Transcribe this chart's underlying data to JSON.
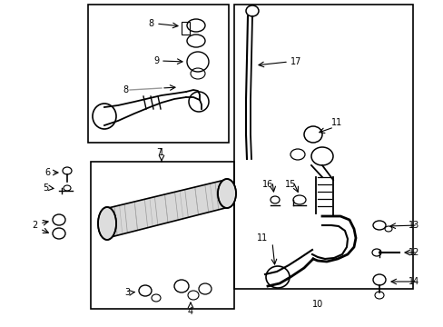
{
  "bg_color": "#ffffff",
  "line_color": "#000000",
  "gray_color": "#999999",
  "fig_w": 4.89,
  "fig_h": 3.6,
  "dpi": 100
}
